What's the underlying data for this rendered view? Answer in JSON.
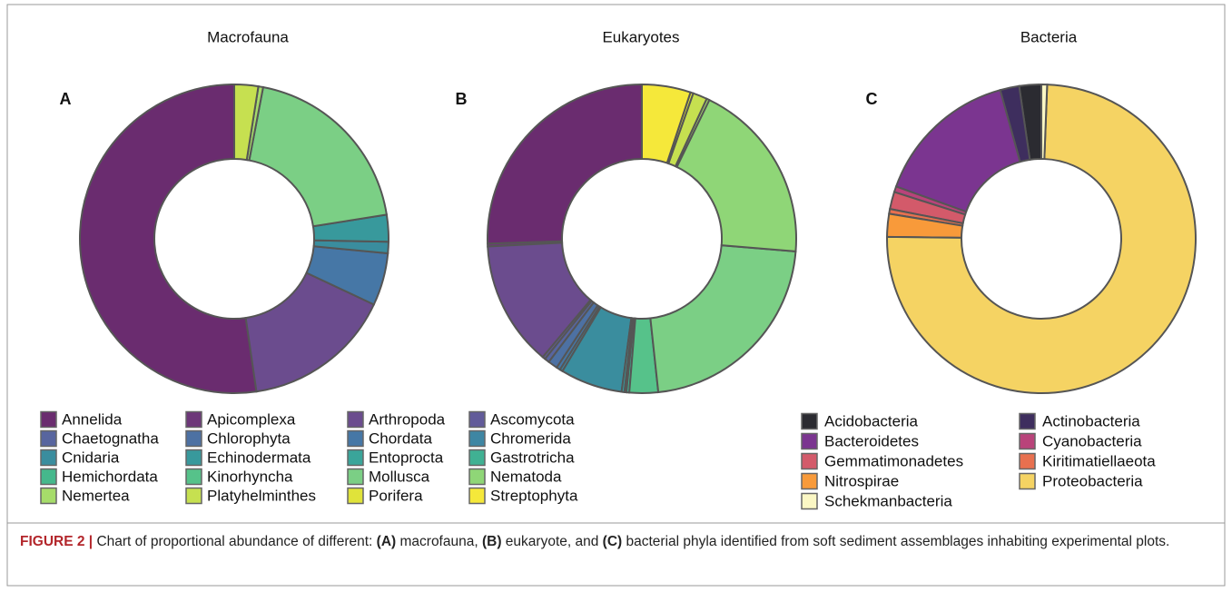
{
  "legend": {
    "names": [
      "Annelida",
      "Apicomplexa",
      "Arthropoda",
      "Ascomycota",
      "Chaetognatha",
      "Chlorophyta",
      "Chordata",
      "Chromerida",
      "Cnidaria",
      "Echinodermata",
      "Entoprocta",
      "Gastrotricha",
      "Hemichordata",
      "Kinorhyncha",
      "Mollusca",
      "Nematoda",
      "Nemertea",
      "Platyhelminthes",
      "Porifera",
      "Streptophyta"
    ],
    "colors": [
      "#6a2c6f",
      "#6d3779",
      "#6b4c8e",
      "#625b9a",
      "#58659f",
      "#4d71a3",
      "#4677a6",
      "#3e86a3",
      "#3a8d9e",
      "#38999c",
      "#3aa59a",
      "#40b193",
      "#45b88c",
      "#56c28a",
      "#7bcf85",
      "#8fd677",
      "#a6dc6a",
      "#c6e050",
      "#e0e33a",
      "#f5e83a"
    ]
  },
  "chart_data": [
    {
      "type": "donut",
      "title": "Macrofauna",
      "panel": "A",
      "values": [
        52.3,
        0,
        15.7,
        0,
        0,
        0,
        5.5,
        0,
        1.2,
        2.8,
        0,
        0,
        0,
        0,
        19.5,
        0,
        0.5,
        2.5,
        0,
        0
      ]
    },
    {
      "type": "donut",
      "title": "Eukaryotes",
      "panel": "B",
      "values": [
        25.5,
        0.3,
        13.1,
        0.3,
        0.5,
        1.0,
        0.4,
        0.3,
        6.5,
        0.3,
        0.2,
        0.3,
        0,
        3.0,
        22,
        19.1,
        0.3,
        1.5,
        0.3,
        5.1
      ]
    },
    {
      "type": "donut",
      "title": "Bacteria",
      "panel": "C",
      "categories": [
        "Acidobacteria",
        "Actinobacteria",
        "Bacteroidetes",
        "Cyanobacteria",
        "Gemmatimonadetes",
        "Kiritimatiellaeota",
        "Nitrospirae",
        "Proteobacteria",
        "Schekmanbacteria"
      ],
      "colors": [
        "#2b2b31",
        "#3e2e5e",
        "#7b3590",
        "#b9437a",
        "#d35a6a",
        "#e8704f",
        "#f89a3a",
        "#f5d363",
        "#fbf7c4"
      ],
      "values": [
        2.3,
        2.0,
        15.2,
        0.6,
        1.8,
        0.5,
        2.4,
        74.6,
        0.6
      ]
    }
  ],
  "caption": [
    "FIGURE 2 |",
    " Chart of proportional abundance of different: ",
    "(A)",
    " macrofauna, ",
    "(B)",
    " eukaryote, and ",
    "(C)",
    " bacterial phyla identified from soft sediment assemblages inhabiting experimental plots."
  ]
}
